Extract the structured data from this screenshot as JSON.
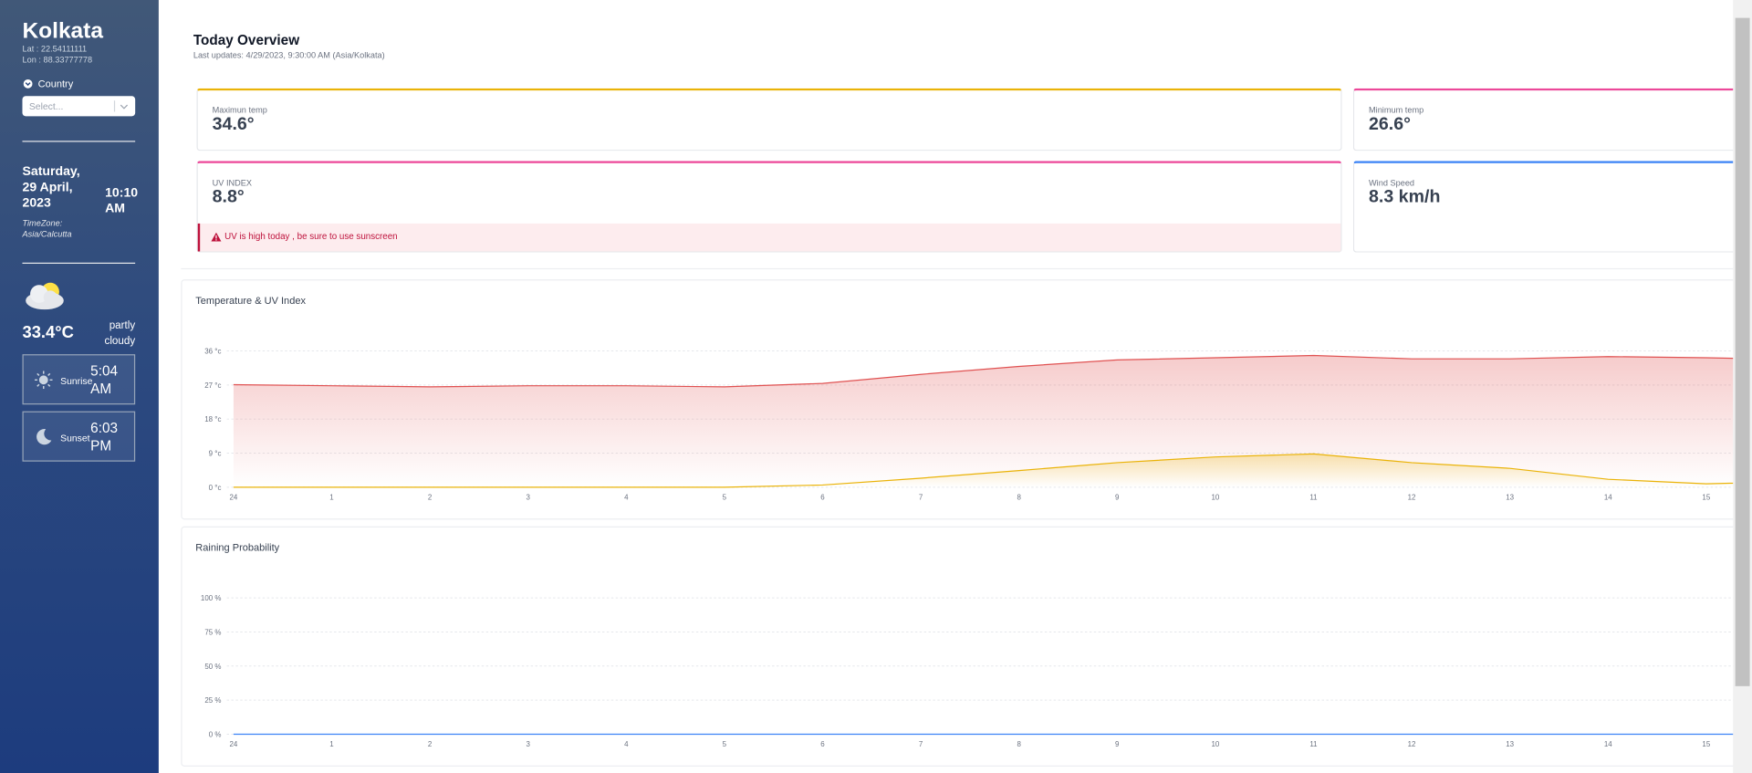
{
  "sidebar": {
    "city": "Kolkata",
    "lat": "Lat : 22.54111111",
    "lon": "Lon : 88.33777778",
    "country_label": "Country",
    "country_placeholder": "Select...",
    "date": "Saturday, 29 April, 2023",
    "time": "10:10 AM",
    "timezone": "TimeZone: Asia/Calcutta",
    "temperature": "33.4°C",
    "condition": "partly cloudy",
    "sunrise_label": "Sunrise",
    "sunrise": "5:04 AM",
    "sunset_label": "Sunset",
    "sunset": "6:03 PM"
  },
  "overview": {
    "title": "Today Overview",
    "updated": "Last updates: 4/29/2023, 9:30:00 AM (Asia/Kolkata)",
    "cards": [
      {
        "label": "Maximun temp",
        "value": "34.6°"
      },
      {
        "label": "Minimum temp",
        "value": "26.6°"
      },
      {
        "label": "UV INDEX",
        "value": "8.8°"
      },
      {
        "label": "Wind Speed",
        "value": "8.3 km/h"
      }
    ],
    "alert": "UV is high today , be sure to use sunscreen"
  },
  "chart_data": [
    {
      "type": "line",
      "title": "Temperature & UV Index",
      "categories": [
        "24",
        "1",
        "2",
        "3",
        "4",
        "5",
        "6",
        "7",
        "8",
        "9",
        "10",
        "11",
        "12",
        "13",
        "14",
        "15",
        null
      ],
      "series": [
        {
          "color": "#e05252",
          "values": [
            27.1,
            26.8,
            26.5,
            26.8,
            26.8,
            26.5,
            27.4,
            29.8,
            31.9,
            33.6,
            34.2,
            34.8,
            33.9,
            33.9,
            34.5,
            34.2,
            33.6
          ]
        },
        {
          "color": "#eab308",
          "values": [
            0,
            0,
            0,
            0,
            0,
            0,
            0.6,
            2.4,
            4.4,
            6.5,
            8.0,
            8.8,
            6.5,
            5.0,
            2.1,
            0.9,
            1.5
          ]
        }
      ],
      "ylim": [
        0,
        36
      ],
      "yticks": [
        {
          "value": 0,
          "label": "0 °c"
        },
        {
          "value": 9,
          "label": "9 °c"
        },
        {
          "value": 18,
          "label": "18 °c"
        },
        {
          "value": 27,
          "label": "27 °c"
        },
        {
          "value": 36,
          "label": "36 °c"
        }
      ],
      "grid": true
    },
    {
      "type": "line",
      "title": "Raining Probability",
      "categories": [
        "24",
        "1",
        "2",
        "3",
        "4",
        "5",
        "6",
        "7",
        "8",
        "9",
        "10",
        "11",
        "12",
        "13",
        "14",
        "15",
        null
      ],
      "series": [
        {
          "color": "#3b82f6",
          "values": [
            0,
            0,
            0,
            0,
            0,
            0,
            0,
            0,
            0,
            0,
            0,
            0,
            0,
            0,
            0,
            0,
            0
          ]
        }
      ],
      "ylim": [
        0,
        100
      ],
      "yticks": [
        {
          "value": 0,
          "label": "0 %"
        },
        {
          "value": 25,
          "label": "25 %"
        },
        {
          "value": 50,
          "label": "50 %"
        },
        {
          "value": 75,
          "label": "75 %"
        },
        {
          "value": 100,
          "label": "100 %"
        }
      ],
      "grid": true
    }
  ]
}
